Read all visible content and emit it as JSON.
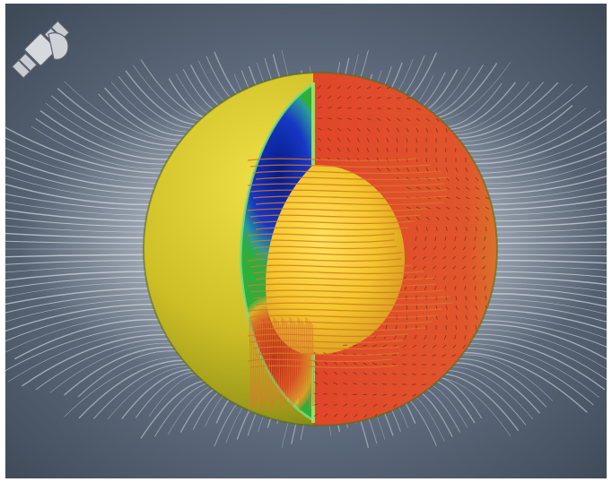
{
  "image": {
    "subject": "sun-interior-cutaway",
    "icons": [
      "satellite-icon"
    ],
    "colors": {
      "background": "#4f5b6b",
      "corona_streamers": "#e9edf2",
      "photosphere": "#d7c62c",
      "convection_zone_left_cold": "#0b2a9c",
      "convection_zone_left_hot": "#c02a18",
      "convection_zone_right": "#e0462a",
      "shell_green": "#2fae3c",
      "radiative_core": "#f2c72b",
      "field_lines": "#d9772c"
    }
  }
}
